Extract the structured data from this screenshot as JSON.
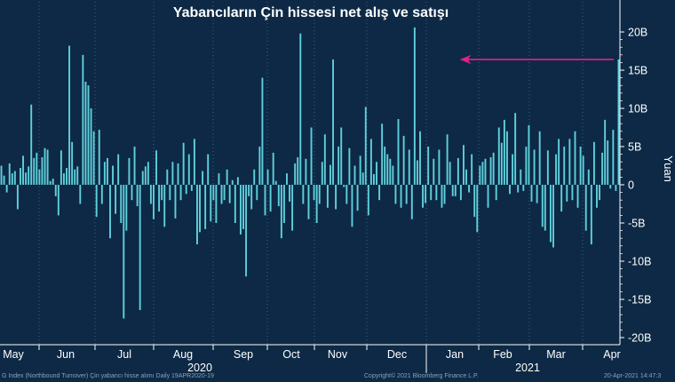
{
  "chart_data": {
    "type": "bar",
    "title": "Yabancıların Çin hissesi net alış ve satışı",
    "ylabel": "Yuan",
    "ylim": [
      -21,
      24
    ],
    "y_ticks": [
      "20B",
      "15B",
      "10B",
      "5B",
      "0",
      "-5B",
      "-10B",
      "-15B",
      "-20B"
    ],
    "y_tick_values": [
      20,
      15,
      10,
      5,
      0,
      -5,
      -10,
      -15,
      -20
    ],
    "month_labels": [
      "May",
      "Jun",
      "Jul",
      "Aug",
      "Sep",
      "Oct",
      "Nov",
      "Dec",
      "Jan",
      "Feb",
      "Mar",
      "Apr"
    ],
    "year_labels": [
      "2020",
      "2021"
    ],
    "series": [
      {
        "values": [
          2.5,
          1.2,
          -1.0,
          2.8,
          1.5,
          1.8,
          -3.2,
          2.2,
          3.8,
          1.6,
          2.4,
          10.5,
          3.5,
          4.2,
          2.0,
          3.6,
          4.8,
          4.6,
          0.5,
          0.8,
          -1.5,
          -4.0,
          4.5,
          1.5,
          2.2,
          18.2,
          5.6,
          2.0,
          2.4,
          -2.5,
          17.0,
          13.5,
          13.0,
          10.0,
          7.0,
          -4.2,
          7.2,
          -2.5,
          3.0,
          3.5,
          -7.0,
          2.5,
          -3.8,
          4.0,
          -5.0,
          -17.5,
          -6.0,
          3.5,
          -2.0,
          5.0,
          -2.8,
          -16.4,
          1.8,
          2.4,
          3.0,
          -2.5,
          -4.5,
          4.5,
          -3.5,
          -2.0,
          -5.5,
          2.0,
          -2.0,
          3.0,
          -4.4,
          2.8,
          -2.0,
          5.5,
          -1.2,
          4.0,
          -0.8,
          6.0,
          -7.8,
          -6.2,
          1.8,
          -5.8,
          4.0,
          -4.8,
          -2.0,
          -5.0,
          1.5,
          -2.5,
          -2.0,
          2.0,
          -2.4,
          0.6,
          -5.0,
          1.0,
          -6.5,
          -5.8,
          -12.0,
          -1.5,
          -3.2,
          2.0,
          -2.0,
          5.0,
          14.0,
          -4.0,
          2.0,
          -3.5,
          4.2,
          0.5,
          -2.8,
          -7.0,
          -5.0,
          1.5,
          -2.2,
          -6.0,
          2.8,
          3.6,
          19.8,
          -2.5,
          3.4,
          -4.5,
          7.5,
          -2.0,
          -5.0,
          -2.5,
          3.0,
          6.6,
          -3.0,
          2.6,
          16.4,
          -3.2,
          5.0,
          7.5,
          -0.3,
          -2.5,
          4.8,
          -5.5,
          2.5,
          -3.4,
          3.8,
          1.6,
          10.2,
          -4.0,
          6.0,
          1.4,
          3.0,
          -2.0,
          8.0,
          5.0,
          4.0,
          3.4,
          2.5,
          -2.5,
          8.6,
          -3.0,
          6.4,
          -2.5,
          4.6,
          -4.5,
          20.6,
          3.2,
          7.0,
          -3.0,
          -2.4,
          5.0,
          -2.0,
          3.4,
          -2.0,
          4.6,
          -3.0,
          -2.5,
          6.6,
          3.0,
          -1.5,
          -1.5,
          3.5,
          -2.0,
          5.2,
          2.0,
          -1.0,
          4.0,
          -4.2,
          -6.2,
          2.5,
          3.0,
          3.4,
          -3.0,
          3.6,
          4.2,
          -2.0,
          7.5,
          5.5,
          8.5,
          7.0,
          -1.2,
          4.0,
          9.4,
          -1.0,
          2.0,
          -0.8,
          5.0,
          7.8,
          -2.2,
          4.6,
          -2.4,
          7.0,
          -5.5,
          -6.0,
          4.5,
          -7.5,
          -8.2,
          4.0,
          6.0,
          -3.5,
          5.0,
          -2.2,
          6.0,
          -2.0,
          7.0,
          -3.0,
          5.0,
          3.8,
          -6.0,
          2.0,
          -7.8,
          5.6,
          -3.0,
          -2.0,
          4.2,
          8.5,
          5.8,
          -0.5,
          7.2,
          -0.8,
          16.4
        ]
      }
    ],
    "annotation": {
      "type": "arrow",
      "pointing": "left",
      "at_value": 16.4,
      "color": "#e2218a"
    },
    "bar_color": "#5fd0dc",
    "background_color": "#0d2945",
    "legend": "none",
    "grid": "dotted-vertical"
  },
  "footer": {
    "left": "G Index (Northbound Turnover) Çin yabancı hisse alımı  Daily 19APR2020-19",
    "middle": "Copyright© 2021 Bloomberg Finance L.P.",
    "right": "20-Apr-2021 14:47:3"
  }
}
